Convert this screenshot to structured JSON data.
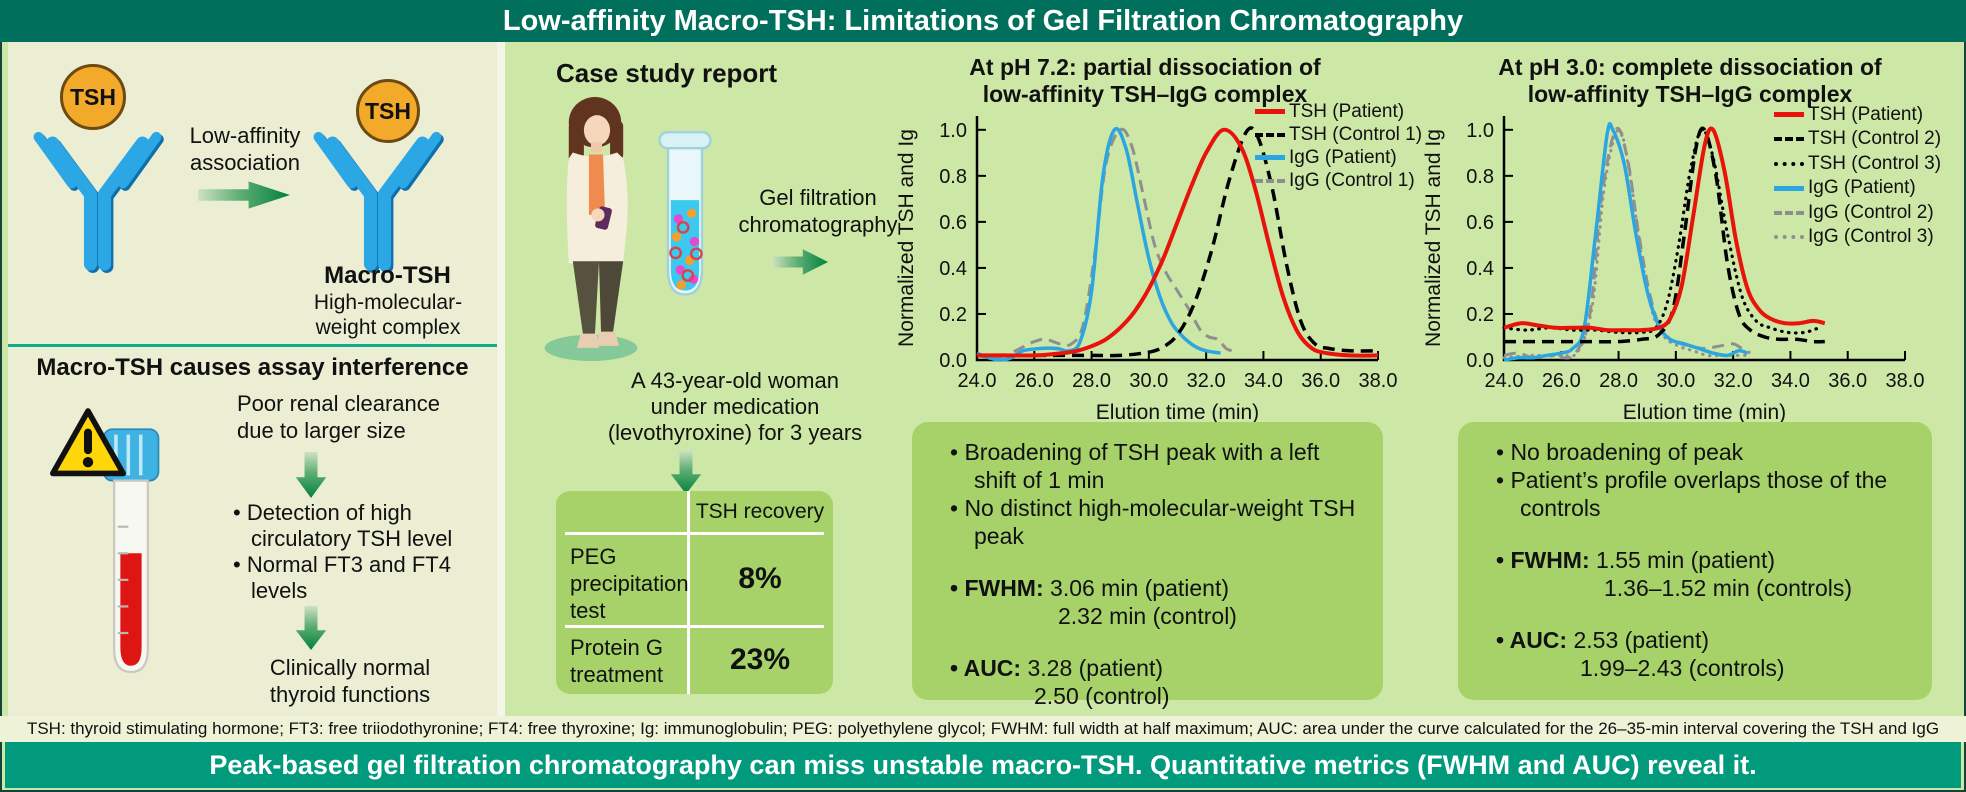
{
  "header": {
    "title": "Low-affinity Macro-TSH: Limitations of Gel Filtration Chromatography"
  },
  "banner": "Peak-based gel filtration chromatography can miss unstable macro-TSH. Quantitative metrics (FWHM and AUC) reveal it.",
  "footnote": "TSH: thyroid stimulating hormone; FT3: free triiodothyronine; FT4: free thyroxine; Ig: immunoglobulin; PEG: polyethylene glycol; FWHM: full width at half maximum; AUC: area under the curve calculated for the 26–35-min interval covering the TSH and IgG elution range",
  "left_panel": {
    "tsh_badge": "TSH",
    "association_lines": [
      "Low-affinity",
      "association"
    ],
    "macro_tsh_title": "Macro-TSH",
    "macro_subtitle_lines": [
      "High-molecular-",
      "weight complex"
    ],
    "interference_heading": "Macro-TSH causes assay interference",
    "renal_text": "Poor renal clearance due to larger size",
    "bullet_tsh": "• Detection of high circulatory TSH level",
    "bullet_ft": "• Normal FT3 and FT4  levels",
    "clinical_lines": [
      "Clinically normal",
      "thyroid functions"
    ]
  },
  "case_panel": {
    "heading": "Case study report",
    "process_label": "Gel filtration chromatography",
    "patient_lines": [
      "A 43-year-old woman",
      "under medication",
      "(levothyroxine) for 3 years"
    ],
    "table": {
      "header": "TSH recovery",
      "rows": [
        {
          "label": "PEG precipitation test",
          "value": "8%"
        },
        {
          "label": "Protein G treatment",
          "value": "23%"
        }
      ]
    }
  },
  "findings_ph72": {
    "bullets": [
      "• Broadening of TSH peak with a left shift of 1 min",
      "• No distinct high-molecular-weight TSH peak"
    ],
    "fwhm_label": "• FWHM:",
    "fwhm_value": "3.06 min (patient)",
    "fwhm_value2": "2.32 min (control)",
    "auc_label": "• AUC:",
    "auc_value": "3.28 (patient)",
    "auc_value2": "2.50 (control)"
  },
  "findings_ph30": {
    "bullets": [
      "• No broadening of peak",
      "• Patient’s profile overlaps those of the controls"
    ],
    "fwhm_label": "• FWHM:",
    "fwhm_value": "1.55 min (patient)",
    "fwhm_value2": "1.36–1.52 min (controls)",
    "auc_label": "• AUC:",
    "auc_value": "2.53 (patient)",
    "auc_value2": "1.99–2.43 (controls)"
  },
  "colors": {
    "header_teal": "#00705c",
    "banner_teal": "#019a7d",
    "panel_pale": "#ebeed3",
    "panel_green": "#cde7a6",
    "box_green": "#a6d269",
    "red": "#e8140c",
    "blue": "#2ba6e0",
    "gray": "#8f8f8f",
    "black": "#000000"
  },
  "chart_data": [
    {
      "type": "line",
      "title_lines": [
        "At pH 7.2: partial dissociation of",
        "low-affinity TSH–IgG complex"
      ],
      "xlabel": "Elution time (min)",
      "ylabel": "Normalized TSH and Ig",
      "xlim": [
        24,
        38
      ],
      "ylim": [
        0,
        1.06
      ],
      "xticks": [
        "24.0",
        "26.0",
        "28.0",
        "30.0",
        "32.0",
        "34.0",
        "36.0",
        "38.0"
      ],
      "yticks": [
        "0.0",
        "0.2",
        "0.4",
        "0.6",
        "0.8",
        "1.0"
      ],
      "grid": false,
      "legend_position": "top-right",
      "series": [
        {
          "name": "TSH (Patient)",
          "color": "#e8140c",
          "dash": "solid",
          "width": 4,
          "points": [
            [
              24,
              0.02
            ],
            [
              25,
              0.02
            ],
            [
              26,
              0.02
            ],
            [
              27,
              0.03
            ],
            [
              27.5,
              0.04
            ],
            [
              28,
              0.06
            ],
            [
              28.5,
              0.09
            ],
            [
              29,
              0.14
            ],
            [
              29.5,
              0.21
            ],
            [
              30,
              0.31
            ],
            [
              30.5,
              0.44
            ],
            [
              31,
              0.6
            ],
            [
              31.5,
              0.76
            ],
            [
              32,
              0.9
            ],
            [
              32.6,
              1.0
            ],
            [
              33.2,
              0.93
            ],
            [
              33.7,
              0.75
            ],
            [
              34.2,
              0.5
            ],
            [
              34.7,
              0.27
            ],
            [
              35.2,
              0.12
            ],
            [
              35.7,
              0.05
            ],
            [
              36.2,
              0.03
            ],
            [
              37,
              0.02
            ],
            [
              38,
              0.02
            ]
          ]
        },
        {
          "name": "TSH (Control 1)",
          "color": "#000000",
          "dash": "dashed",
          "width": 3.5,
          "points": [
            [
              24,
              0.02
            ],
            [
              26,
              0.02
            ],
            [
              28,
              0.02
            ],
            [
              29,
              0.02
            ],
            [
              29.8,
              0.03
            ],
            [
              30.4,
              0.05
            ],
            [
              31,
              0.11
            ],
            [
              31.6,
              0.25
            ],
            [
              32.2,
              0.48
            ],
            [
              32.8,
              0.78
            ],
            [
              33.4,
              0.99
            ],
            [
              33.8,
              0.97
            ],
            [
              34.3,
              0.75
            ],
            [
              34.8,
              0.42
            ],
            [
              35.3,
              0.17
            ],
            [
              35.8,
              0.07
            ],
            [
              36.3,
              0.05
            ],
            [
              37,
              0.04
            ],
            [
              38,
              0.04
            ]
          ]
        },
        {
          "name": "IgG (Patient)",
          "color": "#2ba6e0",
          "dash": "solid",
          "width": 3.5,
          "points": [
            [
              24,
              0.03
            ],
            [
              24.4,
              0.01
            ],
            [
              24.8,
              0.0
            ],
            [
              25.2,
              0.01
            ],
            [
              25.6,
              0.04
            ],
            [
              26.2,
              0.05
            ],
            [
              26.8,
              0.05
            ],
            [
              27.2,
              0.04
            ],
            [
              27.6,
              0.08
            ],
            [
              28,
              0.3
            ],
            [
              28.4,
              0.8
            ],
            [
              28.8,
              1.0
            ],
            [
              29.2,
              0.92
            ],
            [
              29.6,
              0.68
            ],
            [
              30,
              0.44
            ],
            [
              30.4,
              0.27
            ],
            [
              30.8,
              0.16
            ],
            [
              31.2,
              0.1
            ],
            [
              31.6,
              0.06
            ],
            [
              32,
              0.04
            ],
            [
              32.5,
              0.03
            ]
          ]
        },
        {
          "name": "IgG (Control 1)",
          "color": "#8f8f8f",
          "dash": "dashed",
          "width": 3,
          "points": [
            [
              24,
              0.02
            ],
            [
              24.5,
              0.01
            ],
            [
              25,
              0.02
            ],
            [
              25.5,
              0.05
            ],
            [
              26,
              0.08
            ],
            [
              26.4,
              0.09
            ],
            [
              26.9,
              0.07
            ],
            [
              27.3,
              0.07
            ],
            [
              27.7,
              0.15
            ],
            [
              28.1,
              0.45
            ],
            [
              28.5,
              0.85
            ],
            [
              29,
              1.0
            ],
            [
              29.4,
              0.93
            ],
            [
              29.8,
              0.72
            ],
            [
              30.2,
              0.5
            ],
            [
              30.6,
              0.38
            ],
            [
              31,
              0.3
            ],
            [
              31.4,
              0.22
            ],
            [
              31.8,
              0.13
            ],
            [
              32.1,
              0.1
            ],
            [
              32.4,
              0.09
            ],
            [
              32.7,
              0.05
            ],
            [
              32.9,
              0.04
            ]
          ]
        }
      ]
    },
    {
      "type": "line",
      "title_lines": [
        "At pH 3.0: complete dissociation of",
        "low-affinity TSH–IgG complex"
      ],
      "xlabel": "Elution time (min)",
      "ylabel": "Normalized TSH and Ig",
      "xlim": [
        24,
        38
      ],
      "ylim": [
        0,
        1.06
      ],
      "xticks": [
        "24.0",
        "26.0",
        "28.0",
        "30.0",
        "32.0",
        "34.0",
        "36.0",
        "38.0"
      ],
      "yticks": [
        "0.0",
        "0.2",
        "0.4",
        "0.6",
        "0.8",
        "1.0"
      ],
      "grid": false,
      "legend_position": "top-right",
      "series": [
        {
          "name": "TSH (Patient)",
          "color": "#e8140c",
          "dash": "solid",
          "width": 4,
          "points": [
            [
              24,
              0.14
            ],
            [
              24.6,
              0.16
            ],
            [
              25.2,
              0.15
            ],
            [
              25.8,
              0.14
            ],
            [
              26.4,
              0.14
            ],
            [
              27,
              0.14
            ],
            [
              27.6,
              0.13
            ],
            [
              28.2,
              0.13
            ],
            [
              28.8,
              0.13
            ],
            [
              29.4,
              0.14
            ],
            [
              29.8,
              0.18
            ],
            [
              30.2,
              0.32
            ],
            [
              30.6,
              0.62
            ],
            [
              31,
              0.93
            ],
            [
              31.3,
              1.0
            ],
            [
              31.7,
              0.82
            ],
            [
              32.1,
              0.52
            ],
            [
              32.5,
              0.31
            ],
            [
              32.9,
              0.22
            ],
            [
              33.3,
              0.18
            ],
            [
              33.8,
              0.16
            ],
            [
              34.3,
              0.16
            ],
            [
              34.8,
              0.17
            ],
            [
              35.2,
              0.16
            ]
          ]
        },
        {
          "name": "TSH (Control 2)",
          "color": "#000000",
          "dash": "dashed",
          "width": 3.5,
          "points": [
            [
              24,
              0.08
            ],
            [
              25,
              0.08
            ],
            [
              26,
              0.08
            ],
            [
              27,
              0.08
            ],
            [
              28,
              0.08
            ],
            [
              28.8,
              0.09
            ],
            [
              29.4,
              0.11
            ],
            [
              29.9,
              0.22
            ],
            [
              30.3,
              0.55
            ],
            [
              30.7,
              0.92
            ],
            [
              31,
              1.0
            ],
            [
              31.4,
              0.8
            ],
            [
              31.8,
              0.42
            ],
            [
              32.2,
              0.2
            ],
            [
              32.6,
              0.13
            ],
            [
              33.1,
              0.1
            ],
            [
              33.6,
              0.09
            ],
            [
              34.2,
              0.09
            ],
            [
              34.8,
              0.08
            ],
            [
              35.2,
              0.08
            ]
          ]
        },
        {
          "name": "TSH (Control 3)",
          "color": "#000000",
          "dash": "dotted",
          "width": 3.2,
          "points": [
            [
              24,
              0.14
            ],
            [
              24.8,
              0.13
            ],
            [
              25.6,
              0.14
            ],
            [
              26.4,
              0.13
            ],
            [
              27.2,
              0.13
            ],
            [
              28,
              0.12
            ],
            [
              28.8,
              0.12
            ],
            [
              29.3,
              0.14
            ],
            [
              29.7,
              0.25
            ],
            [
              30.1,
              0.5
            ],
            [
              30.5,
              0.82
            ],
            [
              30.9,
              1.0
            ],
            [
              31.3,
              0.88
            ],
            [
              31.8,
              0.55
            ],
            [
              32.3,
              0.28
            ],
            [
              32.8,
              0.17
            ],
            [
              33.3,
              0.14
            ],
            [
              33.9,
              0.12
            ],
            [
              34.5,
              0.12
            ],
            [
              35,
              0.14
            ]
          ]
        },
        {
          "name": "IgG (Patient)",
          "color": "#2ba6e0",
          "dash": "solid",
          "width": 3.5,
          "points": [
            [
              24,
              0.0
            ],
            [
              24.5,
              0.01
            ],
            [
              25,
              0.01
            ],
            [
              25.5,
              0.02
            ],
            [
              26,
              0.03
            ],
            [
              26.4,
              0.05
            ],
            [
              26.8,
              0.14
            ],
            [
              27.2,
              0.55
            ],
            [
              27.6,
              0.98
            ],
            [
              27.8,
              1.0
            ],
            [
              28.2,
              0.85
            ],
            [
              28.6,
              0.55
            ],
            [
              29,
              0.3
            ],
            [
              29.4,
              0.15
            ],
            [
              29.8,
              0.09
            ],
            [
              30.3,
              0.07
            ],
            [
              30.8,
              0.05
            ],
            [
              31.3,
              0.03
            ],
            [
              31.8,
              0.02
            ],
            [
              32.2,
              0.04
            ],
            [
              32.5,
              0.03
            ]
          ]
        },
        {
          "name": "IgG (Control 2)",
          "color": "#8f8f8f",
          "dash": "dashed",
          "width": 3,
          "points": [
            [
              24,
              0.02
            ],
            [
              24.5,
              0.03
            ],
            [
              25,
              0.01
            ],
            [
              25.5,
              0.02
            ],
            [
              26,
              0.01
            ],
            [
              26.5,
              0.03
            ],
            [
              27,
              0.2
            ],
            [
              27.4,
              0.7
            ],
            [
              27.9,
              1.0
            ],
            [
              28.3,
              0.88
            ],
            [
              28.7,
              0.55
            ],
            [
              29.1,
              0.28
            ],
            [
              29.5,
              0.13
            ],
            [
              30,
              0.08
            ],
            [
              30.5,
              0.06
            ],
            [
              31,
              0.05
            ],
            [
              31.5,
              0.06
            ],
            [
              32,
              0.07
            ],
            [
              32.3,
              0.05
            ],
            [
              32.6,
              0.03
            ]
          ]
        },
        {
          "name": "IgG (Control 3)",
          "color": "#8f8f8f",
          "dash": "dotted",
          "width": 3,
          "points": [
            [
              24,
              0.01
            ],
            [
              25,
              0.02
            ],
            [
              26,
              0.02
            ],
            [
              26.6,
              0.04
            ],
            [
              27.1,
              0.25
            ],
            [
              27.5,
              0.75
            ],
            [
              28,
              1.0
            ],
            [
              28.4,
              0.8
            ],
            [
              28.8,
              0.45
            ],
            [
              29.2,
              0.2
            ],
            [
              29.6,
              0.1
            ],
            [
              30.1,
              0.06
            ],
            [
              30.6,
              0.04
            ],
            [
              31.1,
              0.02
            ],
            [
              31.6,
              0.02
            ],
            [
              32.1,
              0.02
            ],
            [
              32.5,
              0.02
            ]
          ]
        }
      ]
    }
  ]
}
